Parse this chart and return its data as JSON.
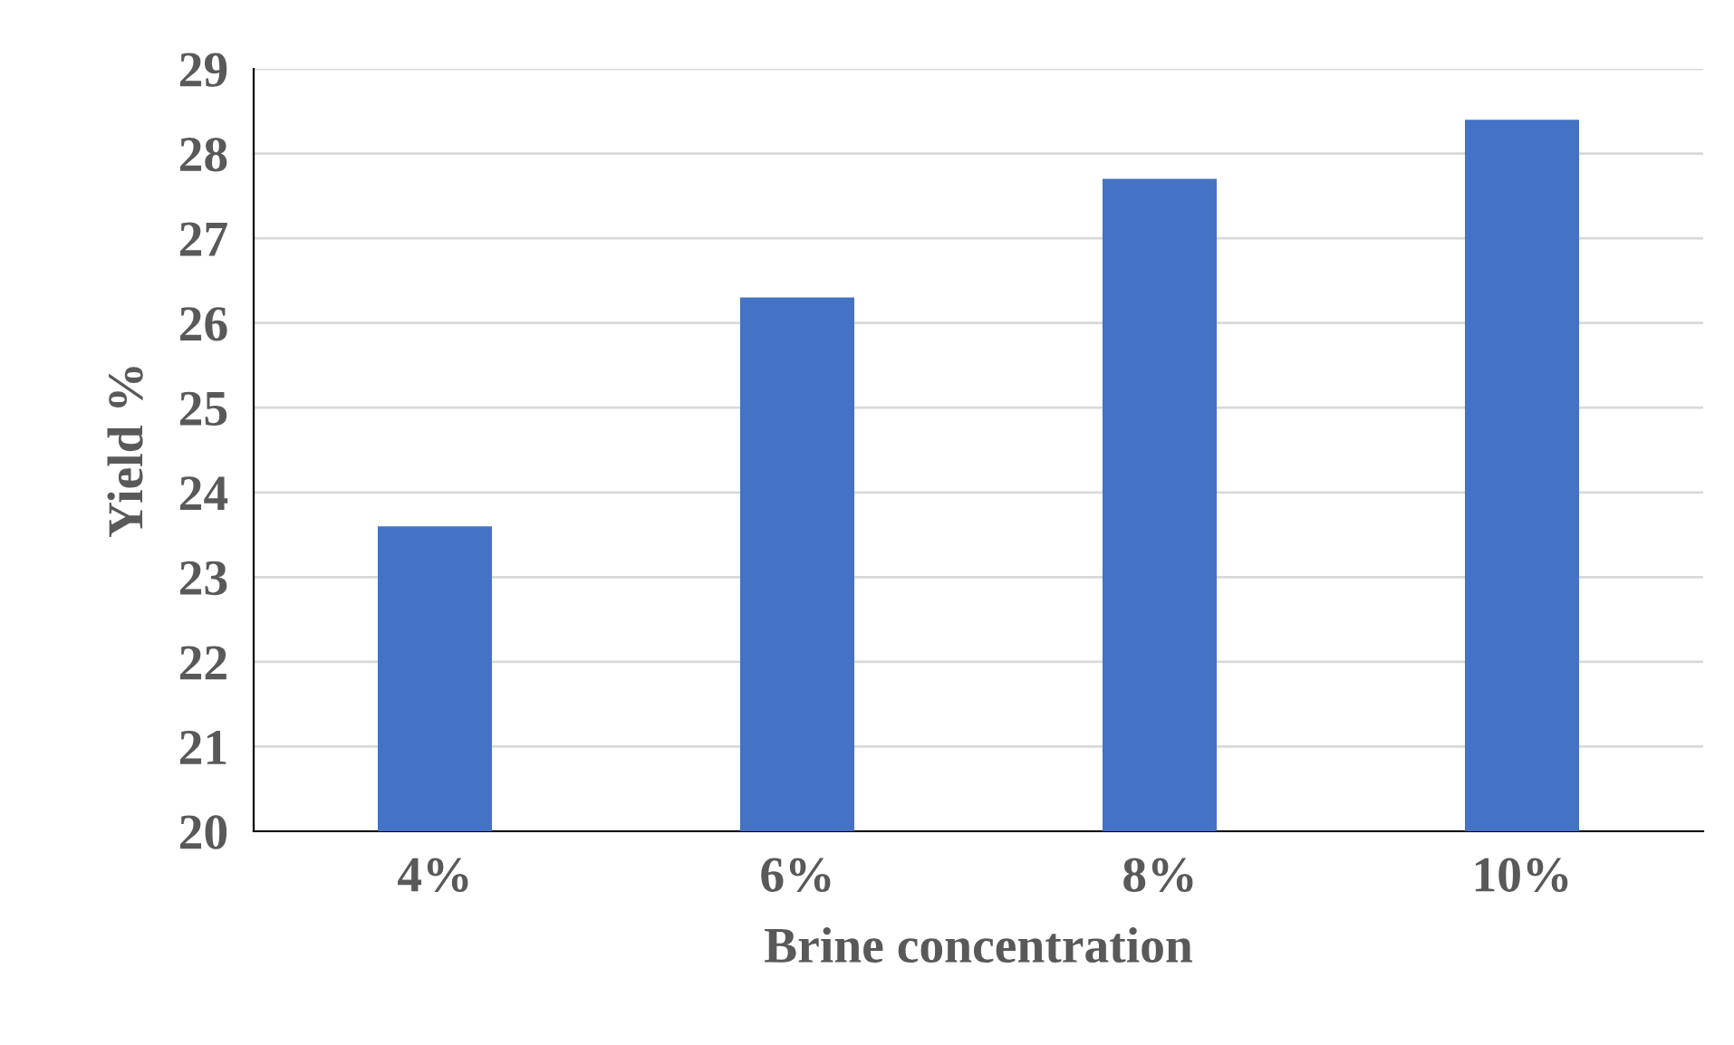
{
  "chart_data": {
    "type": "bar",
    "xlabel": "Brine concentration",
    "ylabel": "Yield %",
    "categories": [
      "4%",
      "6%",
      "8%",
      "10%"
    ],
    "values": [
      23.6,
      26.3,
      27.7,
      28.4
    ],
    "color": "#4472c4",
    "ylim": [
      20,
      29
    ],
    "yticks": [
      20,
      21,
      22,
      23,
      24,
      25,
      26,
      27,
      28,
      29
    ],
    "grid": "y",
    "legend": false
  }
}
